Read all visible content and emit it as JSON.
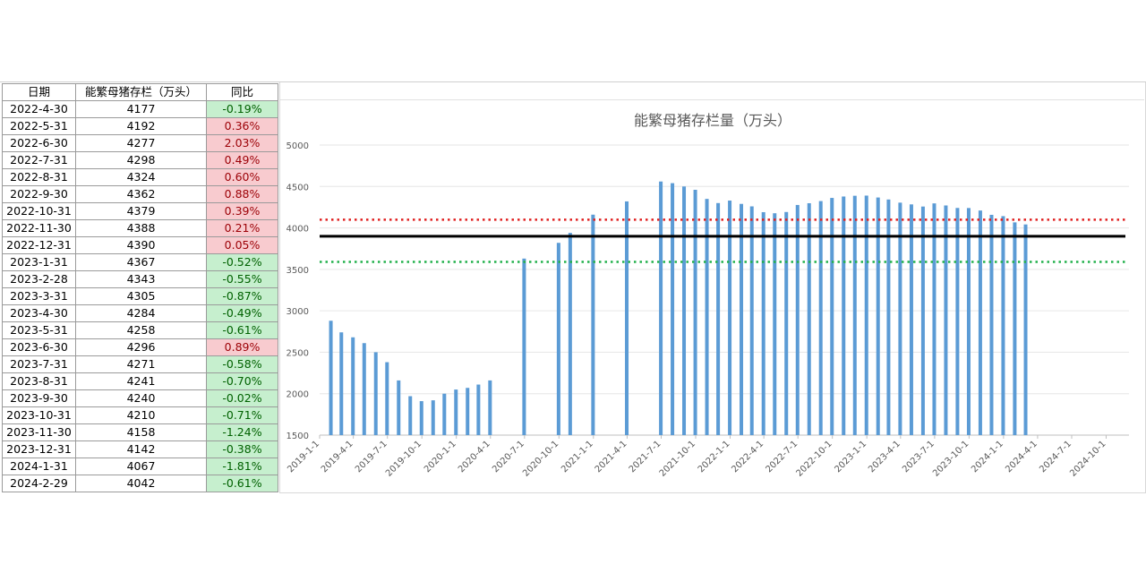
{
  "table": {
    "headers": [
      "日期",
      "能繁母猪存栏（万头）",
      "同比"
    ],
    "rows": [
      [
        "2022-4-30",
        "4177",
        "-0.19%"
      ],
      [
        "2022-5-31",
        "4192",
        "0.36%"
      ],
      [
        "2022-6-30",
        "4277",
        "2.03%"
      ],
      [
        "2022-7-31",
        "4298",
        "0.49%"
      ],
      [
        "2022-8-31",
        "4324",
        "0.60%"
      ],
      [
        "2022-9-30",
        "4362",
        "0.88%"
      ],
      [
        "2022-10-31",
        "4379",
        "0.39%"
      ],
      [
        "2022-11-30",
        "4388",
        "0.21%"
      ],
      [
        "2022-12-31",
        "4390",
        "0.05%"
      ],
      [
        "2023-1-31",
        "4367",
        "-0.52%"
      ],
      [
        "2023-2-28",
        "4343",
        "-0.55%"
      ],
      [
        "2023-3-31",
        "4305",
        "-0.87%"
      ],
      [
        "2023-4-30",
        "4284",
        "-0.49%"
      ],
      [
        "2023-5-31",
        "4258",
        "-0.61%"
      ],
      [
        "2023-6-30",
        "4296",
        "0.89%"
      ],
      [
        "2023-7-31",
        "4271",
        "-0.58%"
      ],
      [
        "2023-8-31",
        "4241",
        "-0.70%"
      ],
      [
        "2023-9-30",
        "4240",
        "-0.02%"
      ],
      [
        "2023-10-31",
        "4210",
        "-0.71%"
      ],
      [
        "2023-11-30",
        "4158",
        "-1.24%"
      ],
      [
        "2023-12-31",
        "4142",
        "-0.38%"
      ],
      [
        "2024-1-31",
        "4067",
        "-1.81%"
      ],
      [
        "2024-2-29",
        "4042",
        "-0.61%"
      ]
    ]
  },
  "colors": {
    "bar": "#5b9bd5",
    "positive_fill": "#f8cbcf",
    "negative_fill": "#c6efce",
    "upper_line": "#e02020",
    "lower_line": "#22b04b",
    "mid_line": "#000000"
  },
  "chart_data": {
    "type": "bar",
    "title": "能繁母猪存栏量（万头）",
    "xlabel": "",
    "ylabel": "",
    "ylim": [
      1500,
      5000
    ],
    "yticks": [
      1500,
      2000,
      2500,
      3000,
      3500,
      4000,
      4500,
      5000
    ],
    "x_tick_labels": [
      "2019-1-1",
      "2019-4-1",
      "2019-7-1",
      "2019-10-1",
      "2020-1-1",
      "2020-4-1",
      "2020-7-1",
      "2020-10-1",
      "2021-1-1",
      "2021-4-1",
      "2021-7-1",
      "2021-10-1",
      "2022-1-1",
      "2022-4-1",
      "2022-7-1",
      "2022-10-1",
      "2023-1-1",
      "2023-4-1",
      "2023-7-1",
      "2023-10-1",
      "2024-1-1",
      "2024-4-1",
      "2024-7-1",
      "2024-10-1"
    ],
    "x_range": [
      "2019-01-01",
      "2024-12-01"
    ],
    "grid": true,
    "series": [
      {
        "points": [
          [
            "2019-01-31",
            2880
          ],
          [
            "2019-02-28",
            2740
          ],
          [
            "2019-03-31",
            2680
          ],
          [
            "2019-04-30",
            2610
          ],
          [
            "2019-05-31",
            2500
          ],
          [
            "2019-06-30",
            2380
          ],
          [
            "2019-07-31",
            2160
          ],
          [
            "2019-08-31",
            1970
          ],
          [
            "2019-09-30",
            1910
          ],
          [
            "2019-10-31",
            1920
          ],
          [
            "2019-11-30",
            2000
          ],
          [
            "2019-12-31",
            2050
          ],
          [
            "2020-01-31",
            2070
          ],
          [
            "2020-02-29",
            2110
          ],
          [
            "2020-03-31",
            2160
          ],
          [
            "2020-06-30",
            3630
          ],
          [
            "2020-09-30",
            3820
          ],
          [
            "2020-10-31",
            3940
          ],
          [
            "2020-12-31",
            4160
          ],
          [
            "2021-03-31",
            4320
          ],
          [
            "2021-06-30",
            4560
          ],
          [
            "2021-07-31",
            4540
          ],
          [
            "2021-08-31",
            4500
          ],
          [
            "2021-09-30",
            4460
          ],
          [
            "2021-10-31",
            4350
          ],
          [
            "2021-11-30",
            4300
          ],
          [
            "2021-12-31",
            4330
          ],
          [
            "2022-01-31",
            4290
          ],
          [
            "2022-02-28",
            4260
          ],
          [
            "2022-03-31",
            4190
          ],
          [
            "2022-04-30",
            4177
          ],
          [
            "2022-05-31",
            4192
          ],
          [
            "2022-06-30",
            4277
          ],
          [
            "2022-07-31",
            4298
          ],
          [
            "2022-08-31",
            4324
          ],
          [
            "2022-09-30",
            4362
          ],
          [
            "2022-10-31",
            4379
          ],
          [
            "2022-11-30",
            4388
          ],
          [
            "2022-12-31",
            4390
          ],
          [
            "2023-01-31",
            4367
          ],
          [
            "2023-02-28",
            4343
          ],
          [
            "2023-03-31",
            4305
          ],
          [
            "2023-04-30",
            4284
          ],
          [
            "2023-05-31",
            4258
          ],
          [
            "2023-06-30",
            4296
          ],
          [
            "2023-07-31",
            4271
          ],
          [
            "2023-08-31",
            4241
          ],
          [
            "2023-09-30",
            4240
          ],
          [
            "2023-10-31",
            4210
          ],
          [
            "2023-11-30",
            4158
          ],
          [
            "2023-12-31",
            4142
          ],
          [
            "2024-01-31",
            4067
          ],
          [
            "2024-02-29",
            4042
          ]
        ]
      }
    ],
    "reference_lines": [
      {
        "value": 4100,
        "style": "dotted",
        "color": "#e02020"
      },
      {
        "value": 3900,
        "style": "solid",
        "color": "#000000"
      },
      {
        "value": 3590,
        "style": "dotted",
        "color": "#22b04b"
      }
    ]
  }
}
